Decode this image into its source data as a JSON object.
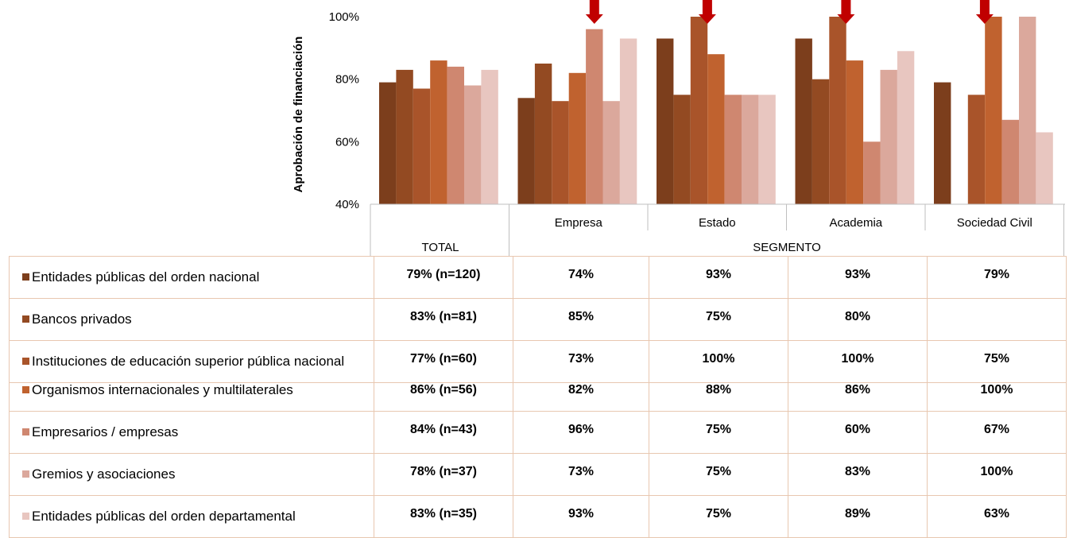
{
  "chart_data": {
    "type": "bar",
    "ylabel": "Aprobación  de financiación",
    "ylim": [
      0.4,
      1.0
    ],
    "yticks": [
      "40%",
      "60%",
      "80%",
      "100%"
    ],
    "y_tick_values": [
      0.4,
      0.6,
      0.8,
      1.0
    ],
    "group_header_total": "TOTAL",
    "group_header_segment": "SEGMENTO",
    "categories": [
      "",
      "Empresa",
      "Estado",
      "Academia",
      "Sociedad Civil"
    ],
    "highlight_markers": [
      "Empresa",
      "Estado",
      "Academia",
      "Sociedad Civil"
    ],
    "series": [
      {
        "name": "Entidades públicas del orden nacional",
        "color": "#7c3e1c",
        "values": [
          0.79,
          0.74,
          0.93,
          0.93,
          0.79
        ],
        "cells": [
          "79% (n=120)",
          "74%",
          "93%",
          "93%",
          "79%"
        ]
      },
      {
        "name": "Bancos privados",
        "color": "#934a22",
        "values": [
          0.83,
          0.85,
          0.75,
          0.8,
          null
        ],
        "cells": [
          "83% (n=81)",
          "85%",
          "75%",
          "80%",
          ""
        ]
      },
      {
        "name": "Instituciones de educación superior pública nacional",
        "color": "#a9542a",
        "values": [
          0.77,
          0.73,
          1.0,
          1.0,
          0.75
        ],
        "cells": [
          "77% (n=60)",
          "73%",
          "100%",
          "100%",
          "75%"
        ]
      },
      {
        "name": "Organismos internacionales y multilaterales",
        "color": "#c0622f",
        "values": [
          0.86,
          0.82,
          0.88,
          0.86,
          1.0
        ],
        "cells": [
          "86% (n=56)",
          "82%",
          "88%",
          "86%",
          "100%"
        ]
      },
      {
        "name": "Empresarios / empresas",
        "color": "#cf8770",
        "values": [
          0.84,
          0.96,
          0.75,
          0.6,
          0.67
        ],
        "cells": [
          "84% (n=43)",
          "96%",
          "75%",
          "60%",
          "67%"
        ]
      },
      {
        "name": "Gremios y asociaciones",
        "color": "#dba89c",
        "values": [
          0.78,
          0.73,
          0.75,
          0.83,
          1.0
        ],
        "cells": [
          "78% (n=37)",
          "73%",
          "75%",
          "83%",
          "100%"
        ]
      },
      {
        "name": "Entidades públicas del orden departamental",
        "color": "#e8c6c0",
        "values": [
          0.83,
          0.93,
          0.75,
          0.89,
          0.63
        ],
        "cells": [
          "83% (n=35)",
          "93%",
          "75%",
          "89%",
          "63%"
        ]
      }
    ],
    "marker_color": "#c00000",
    "grid": false,
    "legend": "table-left"
  }
}
